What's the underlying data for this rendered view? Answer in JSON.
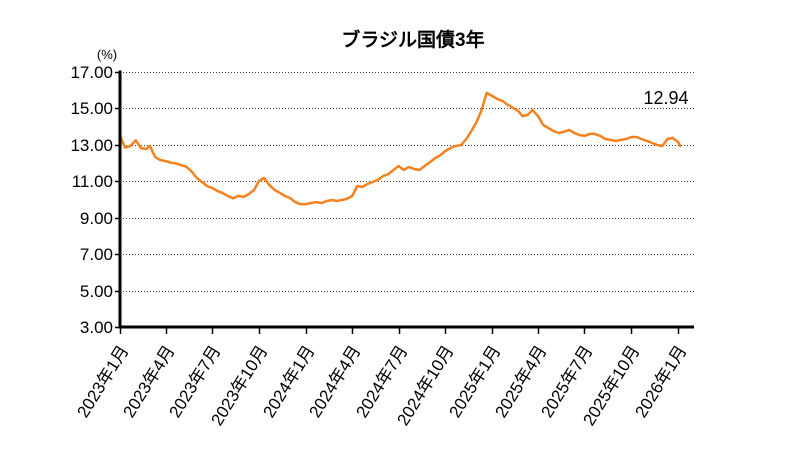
{
  "chart_data": {
    "type": "line",
    "title": "ブラジル国債3年",
    "xlabel": "",
    "ylabel": "(%)",
    "ylim": [
      3,
      17
    ],
    "yticks": [
      3,
      5,
      7,
      9,
      11,
      13,
      15,
      17
    ],
    "ytick_labels": [
      "3.00",
      "5.00",
      "7.00",
      "9.00",
      "11.00",
      "13.00",
      "15.00",
      "17.00"
    ],
    "xlim": [
      "2023-01-01",
      "2026-02-01"
    ],
    "xticks": [
      "2023-01-01",
      "2023-04-01",
      "2023-07-01",
      "2023-10-01",
      "2024-01-01",
      "2024-04-01",
      "2024-07-01",
      "2024-10-01",
      "2025-01-01",
      "2025-04-01",
      "2025-07-01",
      "2025-10-01",
      "2026-01-01"
    ],
    "xtick_labels": [
      "2023年1月",
      "2023年4月",
      "2023年7月",
      "2023年10月",
      "2024年1月",
      "2024年4月",
      "2024年7月",
      "2024年10月",
      "2025年1月",
      "2025年4月",
      "2025年7月",
      "2025年10月",
      "2026年1月"
    ],
    "grid": {
      "y": true,
      "x": false,
      "style": "dotted"
    },
    "legend": "none",
    "series": [
      {
        "color": "#F5821F",
        "x": [
          "2023-01-02",
          "2023-01-11",
          "2023-01-21",
          "2023-02-01",
          "2023-02-11",
          "2023-02-21",
          "2023-03-01",
          "2023-03-11",
          "2023-03-21",
          "2023-04-01",
          "2023-04-11",
          "2023-04-21",
          "2023-05-01",
          "2023-05-11",
          "2023-05-21",
          "2023-06-01",
          "2023-06-11",
          "2023-06-21",
          "2023-07-01",
          "2023-07-11",
          "2023-07-21",
          "2023-08-01",
          "2023-08-11",
          "2023-08-21",
          "2023-09-01",
          "2023-09-11",
          "2023-09-21",
          "2023-10-01",
          "2023-10-11",
          "2023-10-21",
          "2023-11-01",
          "2023-11-11",
          "2023-11-21",
          "2023-12-01",
          "2023-12-11",
          "2023-12-21",
          "2024-01-01",
          "2024-01-11",
          "2024-01-21",
          "2024-02-01",
          "2024-02-11",
          "2024-02-21",
          "2024-03-01",
          "2024-03-11",
          "2024-03-21",
          "2024-04-01",
          "2024-04-11",
          "2024-04-21",
          "2024-05-01",
          "2024-05-11",
          "2024-05-21",
          "2024-06-01",
          "2024-06-11",
          "2024-06-21",
          "2024-07-01",
          "2024-07-11",
          "2024-07-21",
          "2024-08-01",
          "2024-08-11",
          "2024-08-21",
          "2024-09-01",
          "2024-09-11",
          "2024-09-21",
          "2024-10-01",
          "2024-10-11",
          "2024-10-21",
          "2024-11-01",
          "2024-11-11",
          "2024-11-21",
          "2024-12-01",
          "2024-12-11",
          "2024-12-21",
          "2025-01-01",
          "2025-01-11",
          "2025-01-21",
          "2025-02-01",
          "2025-02-11",
          "2025-02-21",
          "2025-03-01",
          "2025-03-11",
          "2025-03-21",
          "2025-04-01",
          "2025-04-11",
          "2025-04-21",
          "2025-05-01",
          "2025-05-11",
          "2025-05-21",
          "2025-06-01",
          "2025-06-11",
          "2025-06-21",
          "2025-07-01",
          "2025-07-11",
          "2025-07-21",
          "2025-08-01",
          "2025-08-11",
          "2025-08-21",
          "2025-09-01",
          "2025-09-11",
          "2025-09-21",
          "2025-10-01",
          "2025-10-11",
          "2025-10-21",
          "2025-11-01",
          "2025-11-11",
          "2025-11-21",
          "2025-12-01",
          "2025-12-11",
          "2025-12-21",
          "2026-01-01",
          "2026-01-05"
        ],
        "values": [
          13.43,
          12.85,
          12.94,
          13.25,
          12.83,
          12.77,
          12.94,
          12.33,
          12.17,
          12.11,
          12.02,
          11.98,
          11.89,
          11.8,
          11.56,
          11.18,
          10.96,
          10.74,
          10.63,
          10.47,
          10.36,
          10.19,
          10.06,
          10.2,
          10.14,
          10.3,
          10.52,
          11.02,
          11.18,
          10.8,
          10.52,
          10.36,
          10.19,
          10.08,
          9.86,
          9.75,
          9.75,
          9.81,
          9.86,
          9.81,
          9.92,
          9.97,
          9.92,
          9.97,
          10.03,
          10.19,
          10.74,
          10.69,
          10.85,
          10.96,
          11.07,
          11.29,
          11.4,
          11.62,
          11.84,
          11.62,
          11.78,
          11.67,
          11.62,
          11.84,
          12.06,
          12.28,
          12.44,
          12.66,
          12.83,
          12.94,
          12.99,
          13.32,
          13.76,
          14.25,
          14.91,
          15.85,
          15.68,
          15.51,
          15.41,
          15.19,
          15.02,
          14.86,
          14.58,
          14.64,
          14.91,
          14.58,
          14.09,
          13.93,
          13.76,
          13.65,
          13.71,
          13.82,
          13.65,
          13.54,
          13.49,
          13.6,
          13.6,
          13.49,
          13.32,
          13.27,
          13.21,
          13.27,
          13.32,
          13.43,
          13.43,
          13.32,
          13.21,
          13.1,
          12.99,
          12.94,
          13.32,
          13.38,
          13.15,
          12.94
        ]
      }
    ],
    "annotations": [
      {
        "text": "12.94"
      }
    ]
  }
}
